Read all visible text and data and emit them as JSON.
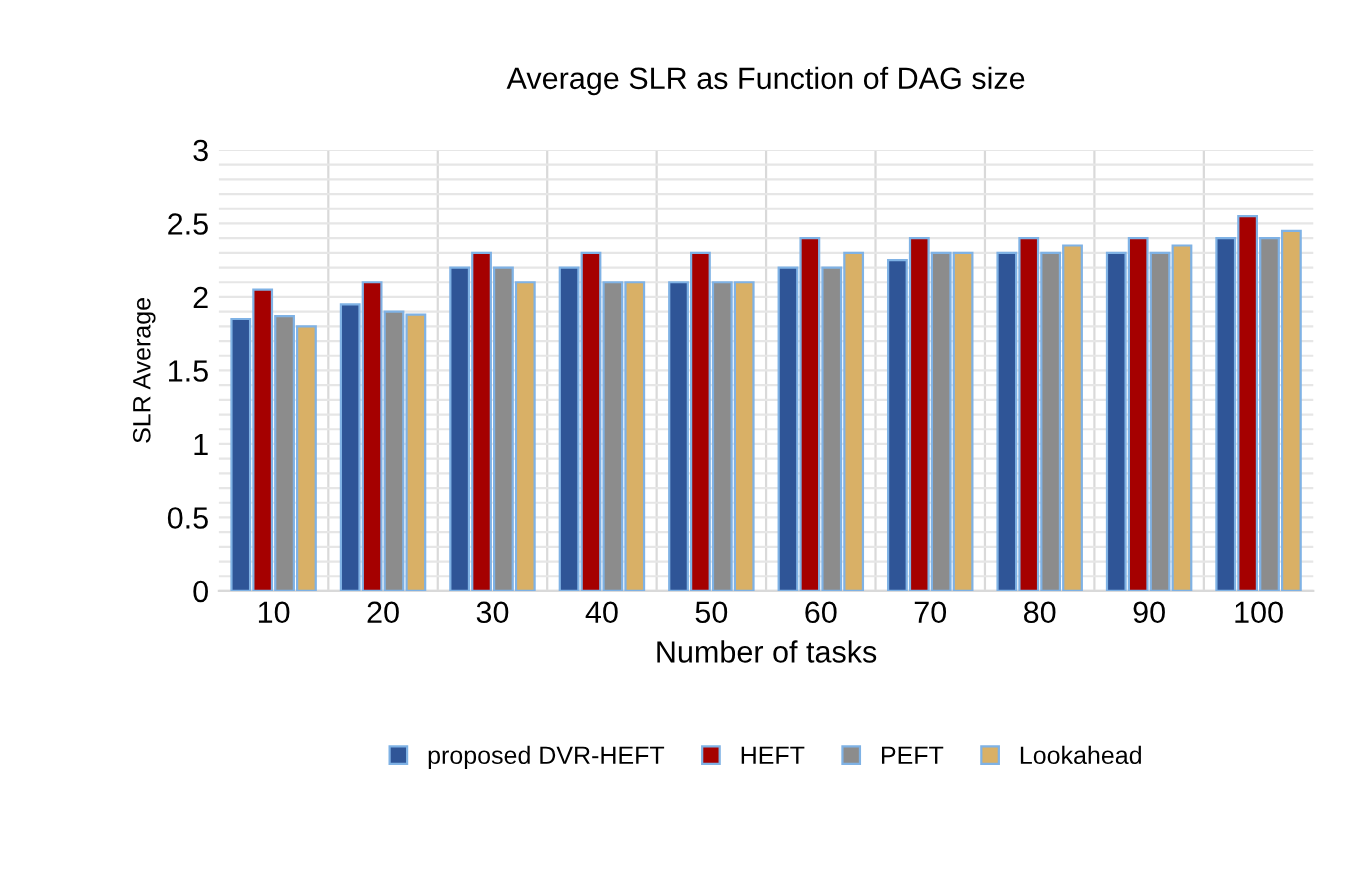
{
  "chart_data": {
    "type": "bar",
    "title": "Average SLR as Function of DAG size",
    "xlabel": "Number of tasks",
    "ylabel": "SLR Average",
    "categories": [
      "10",
      "20",
      "30",
      "40",
      "50",
      "60",
      "70",
      "80",
      "90",
      "100"
    ],
    "series": [
      {
        "name": "proposed DVR-HEFT",
        "color": "#2f5597",
        "values": [
          1.85,
          1.95,
          2.2,
          2.2,
          2.1,
          2.2,
          2.25,
          2.3,
          2.3,
          2.4
        ]
      },
      {
        "name": "HEFT",
        "color": "#a50000",
        "values": [
          2.05,
          2.1,
          2.3,
          2.3,
          2.3,
          2.4,
          2.4,
          2.4,
          2.4,
          2.55
        ]
      },
      {
        "name": "PEFT",
        "color": "#8c8c8c",
        "values": [
          1.87,
          1.9,
          2.2,
          2.1,
          2.1,
          2.2,
          2.3,
          2.3,
          2.3,
          2.4
        ]
      },
      {
        "name": "Lookahead",
        "color": "#d9b066",
        "values": [
          1.8,
          1.88,
          2.1,
          2.1,
          2.1,
          2.3,
          2.3,
          2.35,
          2.35,
          2.45
        ]
      }
    ],
    "ylim": [
      0,
      3
    ],
    "yticks": [
      0,
      0.5,
      1,
      1.5,
      2,
      2.5,
      3
    ],
    "grid": true,
    "legend": "bottom"
  }
}
